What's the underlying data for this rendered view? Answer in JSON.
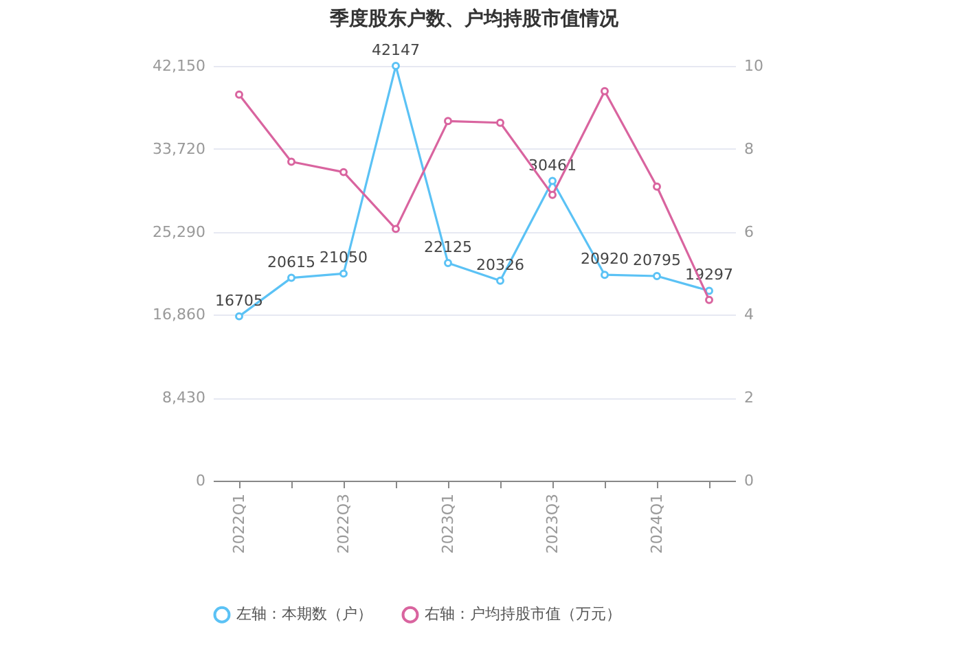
{
  "chart_data": {
    "type": "line",
    "title": "季度股东户数、户均持股市值情况",
    "categories": [
      "2022Q1",
      null,
      "2022Q3",
      null,
      "2023Q1",
      null,
      "2023Q3",
      null,
      "2024Q1",
      null
    ],
    "series": [
      {
        "name": "左轴：本期数（户）",
        "color": "#5bc2f5",
        "values": [
          16705,
          20615,
          21050,
          42147,
          22125,
          20326,
          30461,
          20920,
          20795,
          19297
        ],
        "value_labels": [
          "16705",
          "20615",
          "21050",
          "42147",
          "22125",
          "20326",
          "30461",
          "20920",
          "20795",
          "19297"
        ]
      },
      {
        "name": "右轴：户均持股市值（万元）",
        "color": "#d9649f",
        "axis": "y2",
        "values": [
          9.31,
          7.69,
          7.44,
          6.07,
          8.67,
          8.63,
          6.89,
          9.39,
          7.09,
          4.36
        ]
      }
    ],
    "ylim": [
      0,
      42150
    ],
    "yticks": [
      0,
      {
        "value": 8430,
        "label": "8,430"
      },
      {
        "value": 16860,
        "label": "16,860"
      },
      {
        "value": 25290,
        "label": "25,290"
      },
      {
        "value": 33720,
        "label": "33,720"
      },
      {
        "value": 42150,
        "label": "42,150"
      }
    ],
    "y2lim": [
      0,
      10
    ],
    "y2ticks": [
      0,
      2,
      4,
      6,
      8,
      10
    ],
    "grid": "y",
    "legend": "bottom",
    "marker": "circle",
    "line_style": "solid"
  }
}
